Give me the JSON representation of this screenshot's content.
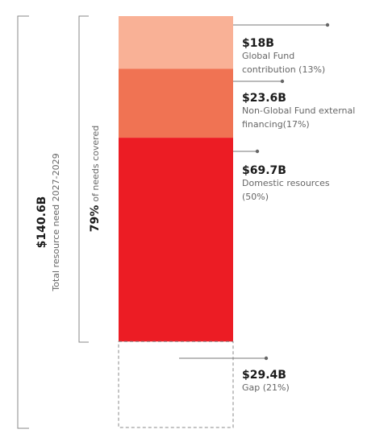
{
  "chart_data": {
    "type": "bar",
    "stacked": true,
    "unit": "USD billions",
    "total": {
      "value_label": "$140.6B",
      "label": "Total resource need 2027-2029",
      "value": 140.6
    },
    "coverage": {
      "percent_label": "79%",
      "text": "of needs covered",
      "percent": 79
    },
    "segments": [
      {
        "name": "Global Fund contribution",
        "value": 18.0,
        "value_label": "$18B",
        "label_lines": [
          "Global Fund",
          "contribution (13%)"
        ],
        "share": 13,
        "color": "#f9b196"
      },
      {
        "name": "Non-Global Fund external financing",
        "value": 23.6,
        "value_label": "$23.6B",
        "label_lines": [
          "Non-Global Fund external",
          "financing(17%)"
        ],
        "share": 17,
        "color": "#f07353"
      },
      {
        "name": "Domestic resources",
        "value": 69.7,
        "value_label": "$69.7B",
        "label_lines": [
          "Domestic resources",
          "(50%)"
        ],
        "share": 50,
        "color": "#ec1c24"
      },
      {
        "name": "Gap",
        "value": 29.4,
        "value_label": "$29.4B",
        "label_lines": [
          "Gap (21%)"
        ],
        "share": 21,
        "color": "none",
        "dashed": true
      }
    ],
    "colors": {
      "bracket": "#888888",
      "dashed": "#888888",
      "leader": "#777777"
    }
  }
}
